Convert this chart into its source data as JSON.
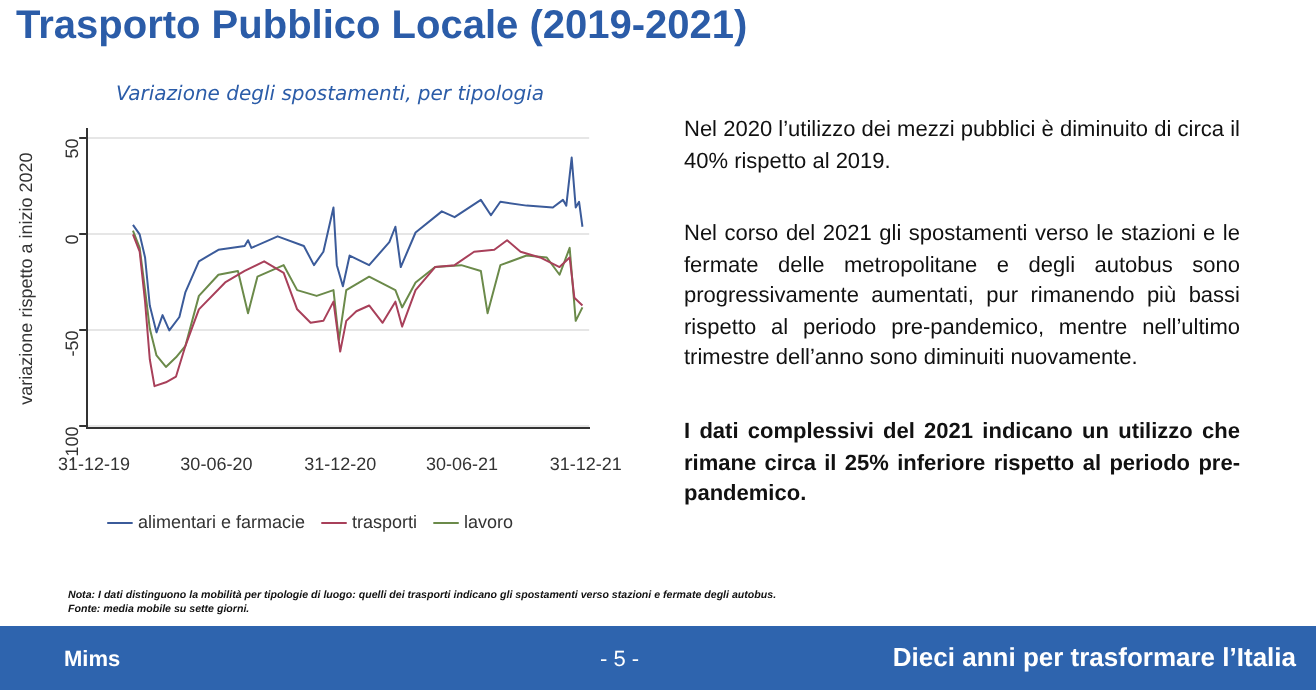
{
  "chart_data": {
    "type": "line",
    "title": "Trasporto Pubblico Locale (2019-2021)",
    "subtitle": "Variazione degli spostamenti, per tipologia",
    "ylabel": "variazione rispetto a inizio 2020",
    "xlim": [
      "2019-12-21",
      "2022-01-05"
    ],
    "xticks": [
      {
        "value": "2019-12-31",
        "label": "31-12-19"
      },
      {
        "value": "2020-06-30",
        "label": "30-06-20"
      },
      {
        "value": "2020-12-31",
        "label": "31-12-20"
      },
      {
        "value": "2021-06-30",
        "label": "30-06-21"
      },
      {
        "value": "2021-12-31",
        "label": "31-12-21"
      }
    ],
    "ylim": [
      -101,
      55
    ],
    "yticks": [
      50,
      0,
      -50,
      -100
    ],
    "grid": "y",
    "legend": "bottom",
    "marker": "none",
    "line_style": "solid",
    "series": [
      {
        "name": "alimentari e farmacie",
        "color": "#3b5b9a",
        "x": [
          "2020-02-27",
          "2020-03-08",
          "2020-03-16",
          "2020-03-23",
          "2020-04-02",
          "2020-04-11",
          "2020-04-21",
          "2020-05-06",
          "2020-05-15",
          "2020-06-04",
          "2020-07-03",
          "2020-08-11",
          "2020-08-16",
          "2020-08-21",
          "2020-09-29",
          "2020-11-07",
          "2020-11-22",
          "2020-12-06",
          "2020-12-21",
          "2020-12-26",
          "2021-01-04",
          "2021-01-14",
          "2021-02-12",
          "2021-03-14",
          "2021-03-23",
          "2021-03-31",
          "2021-04-22",
          "2021-05-31",
          "2021-06-19",
          "2021-07-28",
          "2021-08-12",
          "2021-08-26",
          "2021-10-04",
          "2021-11-12",
          "2021-11-27",
          "2021-12-02",
          "2021-12-10",
          "2021-12-16",
          "2021-12-21",
          "2021-12-26"
        ],
        "values": [
          5,
          0,
          -12,
          -37,
          -51,
          -42,
          -50,
          -43,
          -30,
          -14,
          -8,
          -6,
          -3,
          -7,
          -1,
          -6,
          -16,
          -9,
          14,
          -16,
          -27,
          -11,
          -16,
          -4,
          4,
          -17,
          1,
          12,
          9,
          18,
          10,
          17,
          15,
          14,
          18,
          15,
          40,
          14,
          17,
          4
        ]
      },
      {
        "name": "trasporti",
        "color": "#a8405a",
        "x": [
          "2020-02-27",
          "2020-03-08",
          "2020-03-16",
          "2020-03-23",
          "2020-03-30",
          "2020-04-16",
          "2020-05-01",
          "2020-05-15",
          "2020-06-04",
          "2020-07-13",
          "2020-08-11",
          "2020-09-09",
          "2020-10-08",
          "2020-10-28",
          "2020-11-17",
          "2020-12-06",
          "2020-12-21",
          "2020-12-31",
          "2021-01-09",
          "2021-01-24",
          "2021-02-12",
          "2021-03-04",
          "2021-03-23",
          "2021-04-02",
          "2021-04-22",
          "2021-05-21",
          "2021-06-19",
          "2021-07-18",
          "2021-08-17",
          "2021-09-05",
          "2021-09-25",
          "2021-10-24",
          "2021-11-22",
          "2021-12-07",
          "2021-12-14",
          "2021-12-26"
        ],
        "values": [
          0,
          -9,
          -35,
          -65,
          -79,
          -77,
          -74,
          -58,
          -39,
          -25,
          -19,
          -14,
          -20,
          -39,
          -46,
          -45,
          -35,
          -61,
          -45,
          -40,
          -37,
          -46,
          -35,
          -48,
          -29,
          -17,
          -16,
          -9,
          -8,
          -3,
          -9,
          -12,
          -17,
          -12,
          -33,
          -37
        ]
      },
      {
        "name": "lavoro",
        "color": "#6b8a4a",
        "x": [
          "2020-02-27",
          "2020-03-08",
          "2020-03-16",
          "2020-03-23",
          "2020-04-02",
          "2020-04-16",
          "2020-05-01",
          "2020-05-15",
          "2020-06-04",
          "2020-07-03",
          "2020-08-01",
          "2020-08-16",
          "2020-08-30",
          "2020-10-08",
          "2020-10-28",
          "2020-11-26",
          "2020-12-21",
          "2020-12-29",
          "2021-01-09",
          "2021-02-12",
          "2021-03-23",
          "2021-04-02",
          "2021-04-22",
          "2021-05-21",
          "2021-06-29",
          "2021-07-28",
          "2021-08-07",
          "2021-08-26",
          "2021-10-04",
          "2021-11-03",
          "2021-11-22",
          "2021-12-07",
          "2021-12-16",
          "2021-12-26"
        ],
        "values": [
          2,
          -7,
          -29,
          -49,
          -63,
          -69,
          -64,
          -58,
          -32,
          -21,
          -19,
          -41,
          -22,
          -16,
          -29,
          -32,
          -29,
          -55,
          -29,
          -22,
          -29,
          -38,
          -25,
          -17,
          -16,
          -19,
          -41,
          -16,
          -11,
          -12,
          -21,
          -7,
          -45,
          -38
        ]
      }
    ],
    "annotations": [
      "Nel 2020 l’utilizzo dei mezzi pubblici è diminuito di circa il 40% rispetto al 2019.",
      "Nel corso del 2021 gli spostamenti verso le stazioni e le fermate delle metropolitane e degli autobus sono progressivamente aumentati, pur rimanendo più bassi rispetto al periodo pre-pandemico, mentre nell’ultimo trimestre dell’anno sono diminuiti nuovamente.",
      "I dati complessivi del 2021 indicano un utilizzo che rimane circa il 25% inferiore rispetto al periodo pre-pandemico.",
      "Nota: I dati distinguono la mobilità per tipologie di luogo: quelli dei trasporti indicano gli spostamenti verso stazioni e fermate degli autobus.",
      "Fonte: media mobile su sette giorni.",
      "Mims",
      "- 5 -",
      "Dieci anni per trasformare l’Italia"
    ]
  }
}
